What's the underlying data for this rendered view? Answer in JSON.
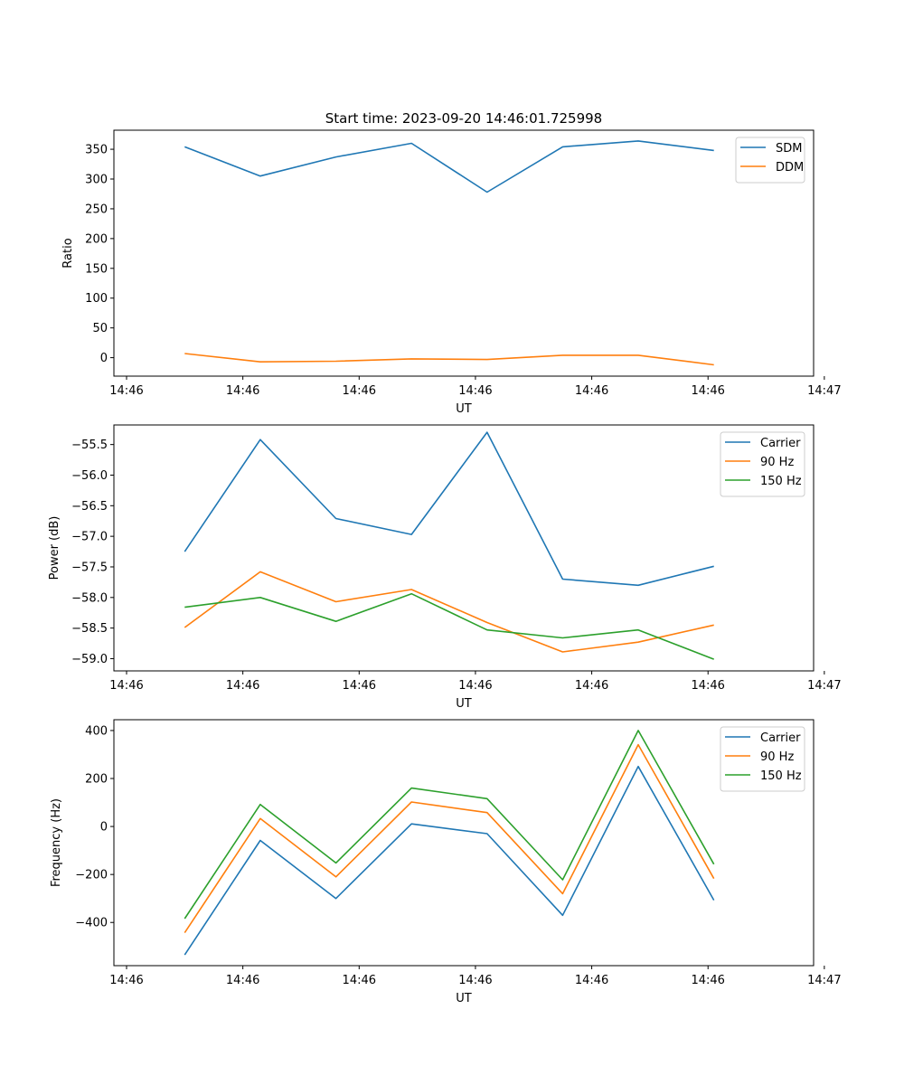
{
  "figure_title": "Start time: 2023-09-20 14:46:01.725998",
  "chart_data": [
    {
      "type": "line",
      "title": "Start time: 2023-09-20 14:46:01.725998",
      "xlabel": "UT",
      "ylabel": "Ratio",
      "x_range": [
        0,
        23.6
      ],
      "x_ticks": [
        0,
        4,
        8,
        12,
        16,
        20,
        24
      ],
      "x_tick_labels": [
        "14:46",
        "14:46",
        "14:46",
        "14:46",
        "14:46",
        "14:46",
        "14:47"
      ],
      "x": [
        2,
        4.6,
        7.2,
        9.8,
        12.4,
        15,
        17.6,
        20.2
      ],
      "ylim": [
        -31,
        382
      ],
      "y_ticks": [
        0,
        50,
        100,
        150,
        200,
        250,
        300,
        350
      ],
      "y_tick_labels": [
        "0",
        "50",
        "100",
        "150",
        "200",
        "250",
        "300",
        "350"
      ],
      "legend_position": "top-right",
      "series": [
        {
          "name": "SDM",
          "color": "#1f77b4",
          "values": [
            354,
            305,
            337,
            360,
            278,
            354,
            364,
            348
          ]
        },
        {
          "name": "DDM",
          "color": "#ff7f0e",
          "values": [
            7,
            -7,
            -6,
            -2,
            -3,
            4,
            4,
            -12
          ]
        }
      ]
    },
    {
      "type": "line",
      "title": "",
      "xlabel": "UT",
      "ylabel": "Power (dB)",
      "x_range": [
        0,
        23.6
      ],
      "x_ticks": [
        0,
        4,
        8,
        12,
        16,
        20,
        24
      ],
      "x_tick_labels": [
        "14:46",
        "14:46",
        "14:46",
        "14:46",
        "14:46",
        "14:46",
        "14:47"
      ],
      "x": [
        2,
        4.6,
        7.2,
        9.8,
        12.4,
        15,
        17.6,
        20.2
      ],
      "ylim": [
        -59.2,
        -55.18
      ],
      "y_ticks": [
        -59.0,
        -58.5,
        -58.0,
        -57.5,
        -57.0,
        -56.5,
        -56.0,
        -55.5
      ],
      "y_tick_labels": [
        "−59.0",
        "−58.5",
        "−58.0",
        "−57.5",
        "−57.0",
        "−56.5",
        "−56.0",
        "−55.5"
      ],
      "legend_position": "top-right",
      "series": [
        {
          "name": "Carrier",
          "color": "#1f77b4",
          "values": [
            -57.25,
            -55.42,
            -56.71,
            -56.97,
            -55.3,
            -57.7,
            -57.8,
            -57.49
          ]
        },
        {
          "name": "90 Hz",
          "color": "#ff7f0e",
          "values": [
            -58.49,
            -57.58,
            -58.07,
            -57.87,
            -58.41,
            -58.89,
            -58.73,
            -58.45
          ]
        },
        {
          "name": "150 Hz",
          "color": "#2ca02c",
          "values": [
            -58.16,
            -58.0,
            -58.39,
            -57.94,
            -58.53,
            -58.66,
            -58.53,
            -59.01
          ]
        }
      ]
    },
    {
      "type": "line",
      "title": "",
      "xlabel": "UT",
      "ylabel": "Frequency (Hz)",
      "x_range": [
        0,
        23.6
      ],
      "x_ticks": [
        0,
        4,
        8,
        12,
        16,
        20,
        24
      ],
      "x_tick_labels": [
        "14:46",
        "14:46",
        "14:46",
        "14:46",
        "14:46",
        "14:46",
        "14:47"
      ],
      "x": [
        2,
        4.6,
        7.2,
        9.8,
        12.4,
        15,
        17.6,
        20.2
      ],
      "ylim": [
        -580,
        445
      ],
      "y_ticks": [
        -400,
        -200,
        0,
        200,
        400
      ],
      "y_tick_labels": [
        "−400",
        "−200",
        "0",
        "200",
        "400"
      ],
      "legend_position": "top-right",
      "series": [
        {
          "name": "Carrier",
          "color": "#1f77b4",
          "values": [
            -535,
            -58,
            -300,
            11,
            -30,
            -370,
            250,
            -307
          ]
        },
        {
          "name": "90 Hz",
          "color": "#ff7f0e",
          "values": [
            -443,
            33,
            -210,
            102,
            58,
            -280,
            341,
            -217
          ]
        },
        {
          "name": "150 Hz",
          "color": "#2ca02c",
          "values": [
            -384,
            92,
            -152,
            160,
            116,
            -222,
            400,
            -157
          ]
        }
      ]
    }
  ]
}
